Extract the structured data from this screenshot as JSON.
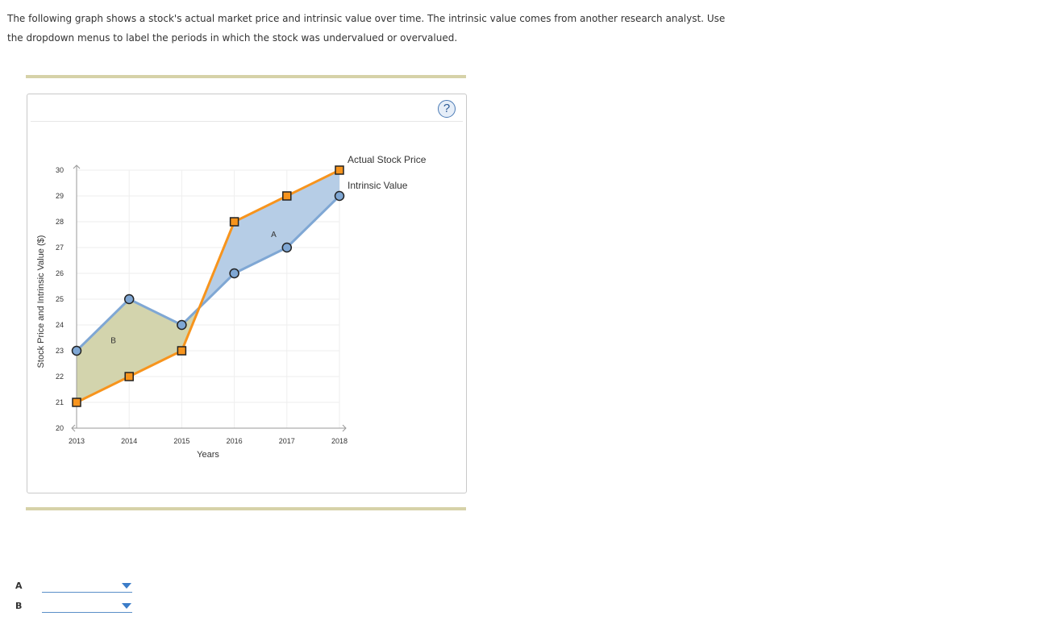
{
  "prompt": {
    "line1": "The following graph shows a stock's actual market price and intrinsic value over time. The intrinsic value comes from another research analyst. Use",
    "line2": "the dropdown menus to label the periods in which the stock was undervalued or overvalued."
  },
  "help_label": "?",
  "chart_data": {
    "type": "line",
    "xlabel": "Years",
    "ylabel": "Stock Price and Intrinsic Value ($)",
    "categories": [
      "2013",
      "2014",
      "2015",
      "2016",
      "2017",
      "2018"
    ],
    "x": [
      2013,
      2014,
      2015,
      2016,
      2017,
      2018
    ],
    "xlim": [
      2013,
      2018
    ],
    "ylim": [
      20,
      30
    ],
    "yticks": [
      20,
      21,
      22,
      23,
      24,
      25,
      26,
      27,
      28,
      29,
      30
    ],
    "grid": true,
    "legend_position": "right",
    "series": [
      {
        "name": "Actual Stock Price",
        "values": [
          21,
          22,
          23,
          28,
          29,
          30
        ],
        "color": "#f7941d",
        "marker": "square"
      },
      {
        "name": "Intrinsic Value",
        "values": [
          23,
          25,
          24,
          26,
          27,
          29
        ],
        "color": "#7fa7d4",
        "marker": "circle"
      }
    ],
    "regions": [
      {
        "label": "A",
        "from": 2015.2,
        "to": 2018,
        "fill": "#b6cde6"
      },
      {
        "label": "B",
        "from": 2013,
        "to": 2015.2,
        "fill": "#d3d4ad"
      }
    ],
    "region_labels": [
      {
        "text": "A",
        "x": 2016.75,
        "y": 27.4
      },
      {
        "text": "B",
        "x": 2013.7,
        "y": 23.3
      }
    ]
  },
  "answers": [
    {
      "letter": "A",
      "selected": ""
    },
    {
      "letter": "B",
      "selected": ""
    }
  ]
}
